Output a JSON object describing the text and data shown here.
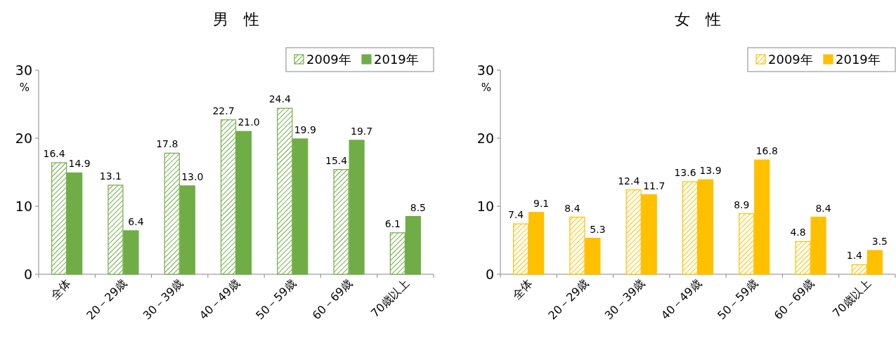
{
  "chart_data": [
    {
      "type": "bar",
      "title": "男　性",
      "ylabel": "%",
      "categories": [
        "全体",
        "20－29歳",
        "30－39歳",
        "40－49歳",
        "50－59歳",
        "60－69歳",
        "70歳以上"
      ],
      "ylim": [
        0,
        30
      ],
      "yticks": [
        0,
        10,
        20,
        30
      ],
      "legend": "top right",
      "series": [
        {
          "name": "2009年",
          "color": "#70ad47",
          "values": [
            16.4,
            13.1,
            17.8,
            22.7,
            24.4,
            15.4,
            6.1
          ],
          "value_labels": [
            "16.4",
            "13.1",
            "17.8",
            "22.7",
            "24.4",
            "15.4",
            "6.1"
          ]
        },
        {
          "name": "2019年",
          "color": "#70ad47",
          "values": [
            14.9,
            6.4,
            13.0,
            21.0,
            19.9,
            19.7,
            8.5
          ],
          "value_labels": [
            "14.9",
            "6.4",
            "13.0",
            "21.0",
            "19.9",
            "19.7",
            "8.5"
          ]
        }
      ]
    },
    {
      "type": "bar",
      "title": "女　性",
      "ylabel": "%",
      "categories": [
        "全体",
        "20－29歳",
        "30－39歳",
        "40－49歳",
        "50－59歳",
        "60－69歳",
        "70歳以上"
      ],
      "ylim": [
        0,
        30
      ],
      "yticks": [
        0,
        10,
        20,
        30
      ],
      "legend": "top right",
      "series": [
        {
          "name": "2009年",
          "color": "#ffc000",
          "values": [
            7.4,
            8.4,
            12.4,
            13.6,
            8.9,
            4.8,
            1.4
          ],
          "value_labels": [
            "7.4",
            "8.4",
            "12.4",
            "13.6",
            "8.9",
            "4.8",
            "1.4"
          ]
        },
        {
          "name": "2019年",
          "color": "#ffc000",
          "values": [
            9.1,
            5.3,
            11.7,
            13.9,
            16.8,
            8.4,
            3.5
          ],
          "value_labels": [
            "9.1",
            "5.3",
            "11.7",
            "13.9",
            "16.8",
            "8.4",
            "3.5"
          ]
        }
      ]
    }
  ]
}
